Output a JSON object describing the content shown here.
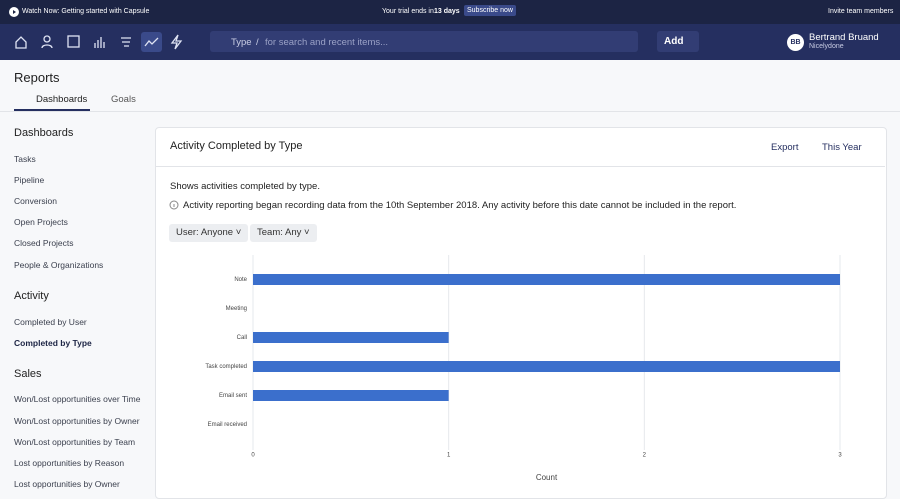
{
  "banner": {
    "watch": "Watch Now: Getting started with Capsule",
    "trial_prefix": "Your trial ends in",
    "trial_days": "13 days",
    "subscribe": "Subscribe now",
    "invite": "Invite team members"
  },
  "nav": {
    "search_type": "Type",
    "search_slash": "/",
    "search_placeholder": "for search and recent items...",
    "add": "Add",
    "avatar": "BB",
    "user_name": "Bertrand Bruand",
    "company": "Nicelydone"
  },
  "page": {
    "title": "Reports",
    "tabs": [
      "Dashboards",
      "Goals"
    ]
  },
  "sidebar": [
    {
      "title": "Dashboards",
      "items": [
        "Tasks",
        "Pipeline",
        "Conversion",
        "Open Projects",
        "Closed Projects",
        "People & Organizations"
      ]
    },
    {
      "title": "Activity",
      "items": [
        "Completed by User",
        "Completed by Type"
      ]
    },
    {
      "title": "Sales",
      "items": [
        "Won/Lost opportunities over Time",
        "Won/Lost opportunities by Owner",
        "Won/Lost opportunities by Team",
        "Lost opportunities by Reason",
        "Lost opportunities by Owner"
      ]
    }
  ],
  "panel": {
    "title": "Activity Completed by Type",
    "export": "Export",
    "period": "This Year",
    "description": "Shows activities completed by type.",
    "notice": "Activity reporting began recording data from the 10th September 2018. Any activity before this date cannot be included in the report.",
    "filters": [
      {
        "label": "User:",
        "value": "Anyone"
      },
      {
        "label": "Team:",
        "value": "Any"
      }
    ]
  },
  "chart_data": {
    "type": "hbar",
    "categories": [
      "Note",
      "Meeting",
      "Call",
      "Task completed",
      "Email sent",
      "Email received"
    ],
    "values": [
      3,
      0,
      1,
      3,
      1,
      0
    ],
    "color": "#3b6fcc",
    "xlim": [
      0,
      3
    ],
    "xticks": [
      0,
      1,
      2,
      3
    ],
    "xlabel": "Count",
    "grid": true
  }
}
